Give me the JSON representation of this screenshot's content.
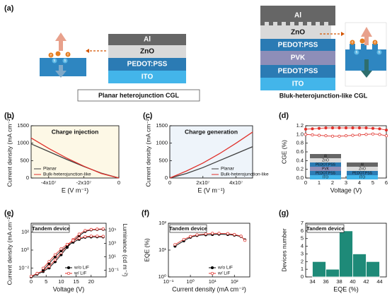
{
  "diagram": {
    "label": "(a)",
    "planar": {
      "layers": [
        "Al",
        "ZnO",
        "PEDOT:PSS",
        "ITO"
      ],
      "caption": "Planar heterojunction CGL"
    },
    "bulk": {
      "layers": [
        "Al",
        "ZnO",
        "PEDOT:PSS",
        "PVK",
        "PEDOT:PSS",
        "ITO"
      ],
      "caption": "Bluk-heterojunction-like CGL"
    },
    "charges": [
      "e",
      "h"
    ]
  },
  "chart_data": [
    {
      "type": "line",
      "label": "(b)",
      "annotation": "Charge injection",
      "background": "#fdf8e6",
      "xlabel": "E (V m⁻¹)",
      "ylabel": "Current density (mA cm⁻²)",
      "x": [
        -50000000,
        -40000000,
        -30000000,
        -20000000,
        -10000000,
        0
      ],
      "xlim": [
        -50000000,
        0
      ],
      "xticks": [
        {
          "value": -40000000,
          "label": "-4x10⁷"
        },
        {
          "value": -20000000,
          "label": "-2x10⁷"
        },
        0
      ],
      "ylim": [
        0,
        1500
      ],
      "yticks": [
        0,
        500,
        1000,
        1500
      ],
      "legend": "lower left",
      "series": [
        {
          "name": "Planar",
          "color": "#404040",
          "values": [
            980,
            760,
            540,
            330,
            140,
            0
          ]
        },
        {
          "name": "Bulk-heterojunction-like",
          "color": "#e0302a",
          "values": [
            1150,
            850,
            580,
            340,
            130,
            0
          ]
        }
      ]
    },
    {
      "type": "line",
      "label": "(c)",
      "annotation": "Charge generation",
      "background": "#eef4fa",
      "xlabel": "E (V m⁻¹)",
      "ylabel": "Current density (mA cm⁻²)",
      "x": [
        0,
        10000000,
        20000000,
        30000000,
        40000000,
        50000000
      ],
      "xlim": [
        0,
        50000000
      ],
      "xticks": [
        0,
        {
          "value": 20000000,
          "label": "2x10⁷"
        },
        {
          "value": 40000000,
          "label": "4x10⁷"
        }
      ],
      "ylim": [
        0,
        1500
      ],
      "yticks": [
        0,
        500,
        1000,
        1500
      ],
      "legend": "lower right",
      "series": [
        {
          "name": "Planar",
          "color": "#404040",
          "values": [
            0,
            130,
            300,
            500,
            700,
            900
          ]
        },
        {
          "name": "Bulk-heterojunction-like",
          "color": "#e0302a",
          "values": [
            0,
            200,
            430,
            700,
            1000,
            1320
          ]
        }
      ]
    },
    {
      "type": "line",
      "label": "(d)",
      "xlabel": "Voltage (V)",
      "ylabel": "CGE (%)",
      "x": [
        0,
        0.5,
        1,
        1.5,
        2,
        2.5,
        3,
        3.5,
        4,
        4.5,
        5,
        5.5,
        6
      ],
      "xlim": [
        0,
        6
      ],
      "xticks": [
        0,
        1,
        2,
        3,
        4,
        5,
        6
      ],
      "ylim": [
        0,
        1.2
      ],
      "yticks": [
        {
          "value": 0,
          "label": "0.0"
        },
        0.2,
        0.4,
        0.6,
        0.8,
        {
          "value": 1,
          "label": "1.0"
        },
        1.2
      ],
      "insets": [
        [
          "Al",
          "ZnO",
          "PEDOT:PSS",
          "PVK",
          "PEDOT:PSS",
          "ITO"
        ],
        [
          "Al",
          "ZnO",
          "PEDOT:PSS",
          "ITO"
        ]
      ],
      "series": [
        {
          "color": "#e0302a",
          "marker": "filled",
          "values": [
            1.12,
            1.13,
            1.14,
            1.15,
            1.15,
            1.15,
            1.15,
            1.15,
            1.15,
            1.15,
            1.14,
            1.13,
            1.1
          ]
        },
        {
          "color": "#e0302a",
          "marker": "open",
          "values": [
            1.0,
            0.99,
            0.98,
            0.97,
            0.96,
            0.96,
            0.97,
            0.98,
            0.99,
            1.0,
            1.01,
            1.0,
            0.97
          ]
        }
      ]
    },
    {
      "type": "line",
      "label": "(e)",
      "annotation": "Tandem device",
      "xlabel": "Voltage (V)",
      "ylabel": "Current density (mA cm⁻²)",
      "y2label": "Luminance (cd m⁻²)",
      "x": [
        0,
        2,
        4,
        6,
        8,
        10,
        12,
        14,
        16,
        18,
        20,
        22,
        24
      ],
      "xlim": [
        0,
        25
      ],
      "xticks": [
        0,
        5,
        10,
        15,
        20
      ],
      "ylog": true,
      "ylim": [
        0.001,
        1000
      ],
      "yticks": [
        {
          "value": 0.01,
          "label": "10⁻²"
        },
        {
          "value": 1,
          "label": "10⁰"
        },
        {
          "value": 100,
          "label": "10²"
        }
      ],
      "y2lim": [
        0.01,
        1000000
      ],
      "y2ticks": [
        {
          "value": 0.1,
          "label": "10⁻¹"
        },
        {
          "value": 10,
          "label": "10¹"
        },
        {
          "value": 1000,
          "label": "10³"
        },
        {
          "value": 100000,
          "label": "10⁵"
        }
      ],
      "legend": "lower right",
      "series": [
        {
          "name": "w/o LiF",
          "color": "#000000",
          "marker": "filled",
          "values": [
            0.001,
            0.002,
            0.004,
            0.01,
            0.05,
            0.3,
            2,
            10,
            40,
            120,
            180,
            200,
            210
          ]
        },
        {
          "name": "w/  LiF",
          "color": "#e0302a",
          "marker": "open",
          "values": [
            0.0012,
            0.0025,
            0.005,
            0.015,
            0.08,
            0.5,
            3,
            15,
            60,
            150,
            200,
            220,
            230
          ]
        },
        {
          "color": "#000000",
          "marker": "filled",
          "axis": "y2",
          "values": [
            null,
            null,
            0.1,
            1,
            10,
            80,
            400,
            1500,
            4000,
            8000,
            9000,
            9500,
            9000
          ]
        },
        {
          "color": "#e0302a",
          "marker": "open",
          "axis": "y2",
          "values": [
            null,
            null,
            0.2,
            2,
            20,
            150,
            700,
            2500,
            6000,
            10000,
            12000,
            12000,
            11000
          ]
        }
      ]
    },
    {
      "type": "line",
      "label": "(f)",
      "annotation": "Tandem device",
      "xlabel": "Current density (mA cm⁻²)",
      "ylabel": "EQE (%)",
      "x": [
        0.2,
        0.5,
        1,
        2,
        5,
        10,
        20,
        50,
        100,
        200,
        300
      ],
      "xlog": true,
      "xlim": [
        0.1,
        500
      ],
      "xticks": [
        {
          "value": 0.1,
          "label": "10⁻¹"
        },
        {
          "value": 1,
          "label": "10⁰"
        },
        {
          "value": 10,
          "label": "10¹"
        },
        {
          "value": 100,
          "label": "10²"
        }
      ],
      "ylog": true,
      "ylim": [
        1,
        100
      ],
      "yticks": [
        {
          "value": 1,
          "label": "10⁰"
        },
        {
          "value": 10,
          "label": "10¹"
        },
        {
          "value": 100,
          "label": "10²"
        }
      ],
      "legend": "lower right",
      "series": [
        {
          "name": "w/o LiF",
          "color": "#000000",
          "marker": "filled",
          "values": [
            14,
            22,
            30,
            35,
            37,
            38,
            39,
            38,
            36,
            32,
            24
          ]
        },
        {
          "name": "w/  LiF",
          "color": "#e0302a",
          "marker": "open",
          "values": [
            16,
            25,
            32,
            37,
            40,
            42,
            42,
            41,
            38,
            33,
            23
          ]
        }
      ]
    },
    {
      "type": "histogram",
      "label": "(g)",
      "annotation": "Tandem device",
      "xlabel": "EQE (%)",
      "ylabel": "Devices number",
      "bins": [
        34,
        36,
        38,
        40,
        42,
        44
      ],
      "values": [
        2,
        1,
        6,
        3,
        2
      ],
      "color": "#1e8a78",
      "xlim": [
        33,
        45
      ],
      "xticks": [
        34,
        36,
        38,
        40,
        42,
        44
      ],
      "ylim": [
        0,
        7
      ],
      "yticks": [
        0,
        1,
        2,
        3,
        4,
        5,
        6,
        7
      ]
    }
  ]
}
